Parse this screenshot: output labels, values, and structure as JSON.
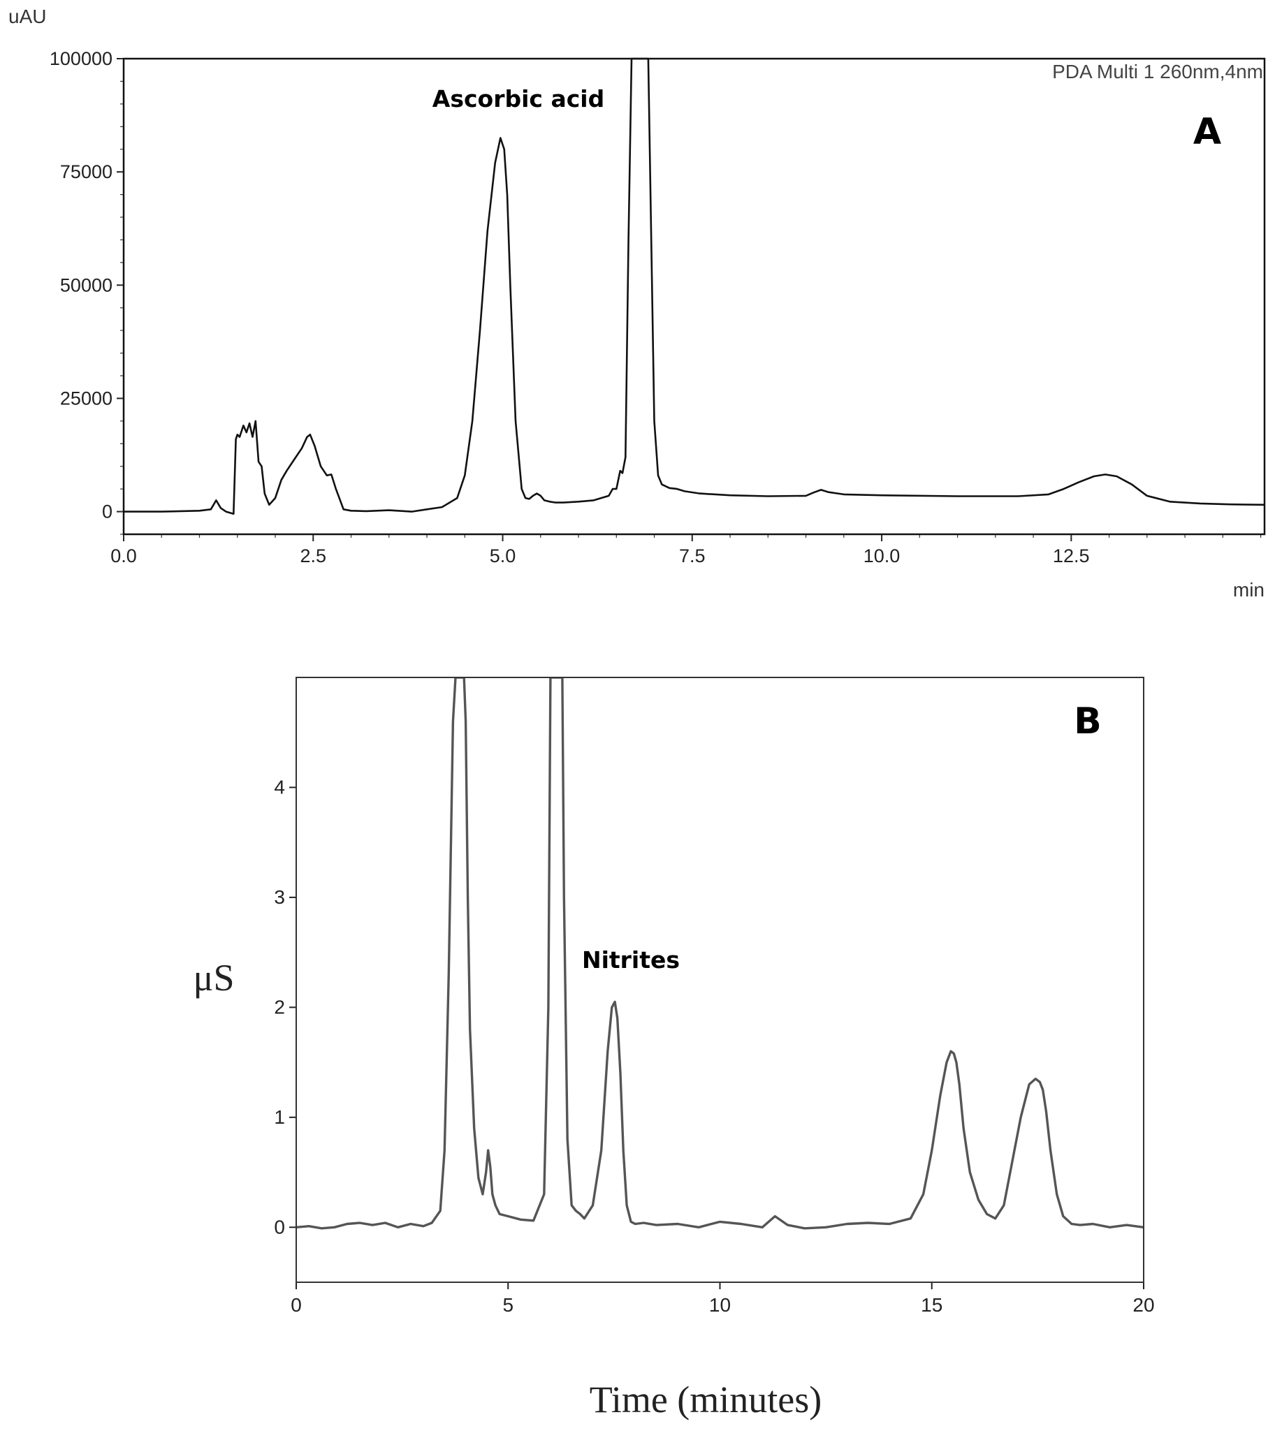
{
  "chart_data": [
    {
      "type": "line",
      "panel_label": "A",
      "detector_note": "PDA Multi 1 260nm,4nm",
      "y_unit": "uAU",
      "x_unit": "min",
      "xlim": [
        0,
        15.05
      ],
      "ylim": [
        -5000,
        100000
      ],
      "x_ticks": [
        "0.0",
        "2.5",
        "5.0",
        "7.5",
        "10.0",
        "12.5"
      ],
      "y_ticks": [
        "0",
        "25000",
        "50000",
        "75000",
        "100000"
      ],
      "annotations": [
        {
          "text": "Ascorbic acid",
          "x": 5.05,
          "y": 82000
        }
      ],
      "series": [
        {
          "x": [
            0,
            0.5,
            1.0,
            1.15,
            1.22,
            1.28,
            1.35,
            1.45,
            1.48,
            1.5,
            1.53,
            1.58,
            1.62,
            1.66,
            1.7,
            1.74,
            1.78,
            1.82,
            1.86,
            1.92,
            2.0,
            2.08,
            2.15,
            2.25,
            2.35,
            2.42,
            2.46,
            2.52,
            2.6,
            2.68,
            2.74,
            2.8,
            2.9,
            3.0,
            3.2,
            3.5,
            3.8,
            4.0,
            4.2,
            4.4,
            4.5,
            4.6,
            4.7,
            4.8,
            4.9,
            4.97,
            5.02,
            5.06,
            5.1,
            5.17,
            5.25,
            5.3,
            5.35,
            5.4,
            5.45,
            5.5,
            5.55,
            5.62,
            5.7,
            5.8,
            6.0,
            6.2,
            6.4,
            6.45,
            6.5,
            6.55,
            6.58,
            6.62,
            6.66,
            6.7,
            6.72,
            6.76,
            6.78,
            6.82,
            6.87,
            6.92,
            6.96,
            7.0,
            7.05,
            7.1,
            7.2,
            7.3,
            7.4,
            7.6,
            8.0,
            8.5,
            9.0,
            9.1,
            9.2,
            9.3,
            9.5,
            10.0,
            11.0,
            11.8,
            12.2,
            12.4,
            12.6,
            12.8,
            12.95,
            13.1,
            13.3,
            13.5,
            13.8,
            14.2,
            14.6,
            15.05
          ],
          "y": [
            0,
            0,
            200,
            500,
            2500,
            800,
            0,
            -500,
            16000,
            17000,
            16500,
            19000,
            17500,
            19500,
            16500,
            20000,
            11000,
            10000,
            4000,
            1500,
            3000,
            7000,
            9000,
            11500,
            14000,
            16500,
            17000,
            14500,
            10000,
            8000,
            8200,
            5000,
            500,
            200,
            100,
            300,
            0,
            500,
            1000,
            3000,
            8000,
            20000,
            40000,
            62000,
            77000,
            82500,
            80000,
            70000,
            50000,
            20000,
            5000,
            3000,
            2800,
            3500,
            4000,
            3500,
            2500,
            2200,
            2000,
            2000,
            2200,
            2500,
            3500,
            5000,
            5000,
            9000,
            8500,
            12000,
            60000,
            100000,
            100000,
            100000,
            100000,
            100000,
            100000,
            100000,
            60000,
            20000,
            8000,
            6000,
            5200,
            5000,
            4500,
            4000,
            3600,
            3400,
            3500,
            4200,
            4800,
            4300,
            3800,
            3600,
            3400,
            3400,
            3800,
            5000,
            6500,
            7800,
            8200,
            7800,
            6000,
            3500,
            2200,
            1800,
            1600,
            1500
          ]
        }
      ]
    },
    {
      "type": "line",
      "panel_label": "B",
      "ylabel": "μS",
      "xlabel": "Time (minutes)",
      "xlim": [
        0,
        20
      ],
      "ylim": [
        -0.5,
        5.0
      ],
      "x_ticks": [
        "0",
        "5",
        "10",
        "15",
        "20"
      ],
      "y_ticks": [
        "0",
        "1",
        "2",
        "3",
        "4"
      ],
      "annotations": [
        {
          "text": "Nitrites",
          "x": 7.6,
          "y": 2.05
        }
      ],
      "series": [
        {
          "x": [
            0,
            0.3,
            0.6,
            0.9,
            1.2,
            1.5,
            1.8,
            2.1,
            2.4,
            2.7,
            3.0,
            3.2,
            3.4,
            3.5,
            3.6,
            3.7,
            3.76,
            3.8,
            3.84,
            3.9,
            3.96,
            4.0,
            4.05,
            4.1,
            4.2,
            4.3,
            4.4,
            4.48,
            4.53,
            4.58,
            4.63,
            4.7,
            4.8,
            5.0,
            5.3,
            5.6,
            5.85,
            5.95,
            6.0,
            6.05,
            6.1,
            6.2,
            6.28,
            6.32,
            6.4,
            6.5,
            6.6,
            6.7,
            6.8,
            7.0,
            7.2,
            7.35,
            7.45,
            7.52,
            7.58,
            7.65,
            7.72,
            7.8,
            7.9,
            8.0,
            8.2,
            8.5,
            9.0,
            9.5,
            10.0,
            10.5,
            11.0,
            11.3,
            11.6,
            12.0,
            12.5,
            13.0,
            13.5,
            14.0,
            14.5,
            14.8,
            15.0,
            15.2,
            15.35,
            15.45,
            15.52,
            15.58,
            15.65,
            15.75,
            15.9,
            16.1,
            16.3,
            16.5,
            16.7,
            16.9,
            17.1,
            17.3,
            17.45,
            17.55,
            17.62,
            17.7,
            17.8,
            17.95,
            18.1,
            18.3,
            18.5,
            18.8,
            19.2,
            19.6,
            20.0
          ],
          "y": [
            0.0,
            0.01,
            -0.01,
            0.0,
            0.03,
            0.04,
            0.02,
            0.04,
            0.0,
            0.03,
            0.01,
            0.04,
            0.15,
            0.7,
            2.3,
            4.6,
            5.0,
            5.0,
            5.0,
            5.0,
            5.0,
            4.6,
            3.0,
            1.8,
            0.9,
            0.45,
            0.3,
            0.5,
            0.7,
            0.55,
            0.3,
            0.2,
            0.12,
            0.1,
            0.07,
            0.06,
            0.3,
            2.0,
            5.0,
            5.0,
            5.0,
            5.0,
            5.0,
            3.0,
            0.8,
            0.2,
            0.15,
            0.12,
            0.08,
            0.2,
            0.7,
            1.6,
            2.0,
            2.05,
            1.9,
            1.4,
            0.7,
            0.2,
            0.05,
            0.03,
            0.04,
            0.02,
            0.03,
            0.0,
            0.05,
            0.03,
            0.0,
            0.1,
            0.02,
            -0.01,
            0.0,
            0.03,
            0.04,
            0.03,
            0.08,
            0.3,
            0.7,
            1.2,
            1.5,
            1.6,
            1.58,
            1.5,
            1.3,
            0.9,
            0.5,
            0.25,
            0.12,
            0.08,
            0.2,
            0.6,
            1.0,
            1.3,
            1.35,
            1.32,
            1.25,
            1.05,
            0.7,
            0.3,
            0.1,
            0.03,
            0.02,
            0.03,
            0.0,
            0.02,
            0.0
          ]
        }
      ]
    }
  ]
}
